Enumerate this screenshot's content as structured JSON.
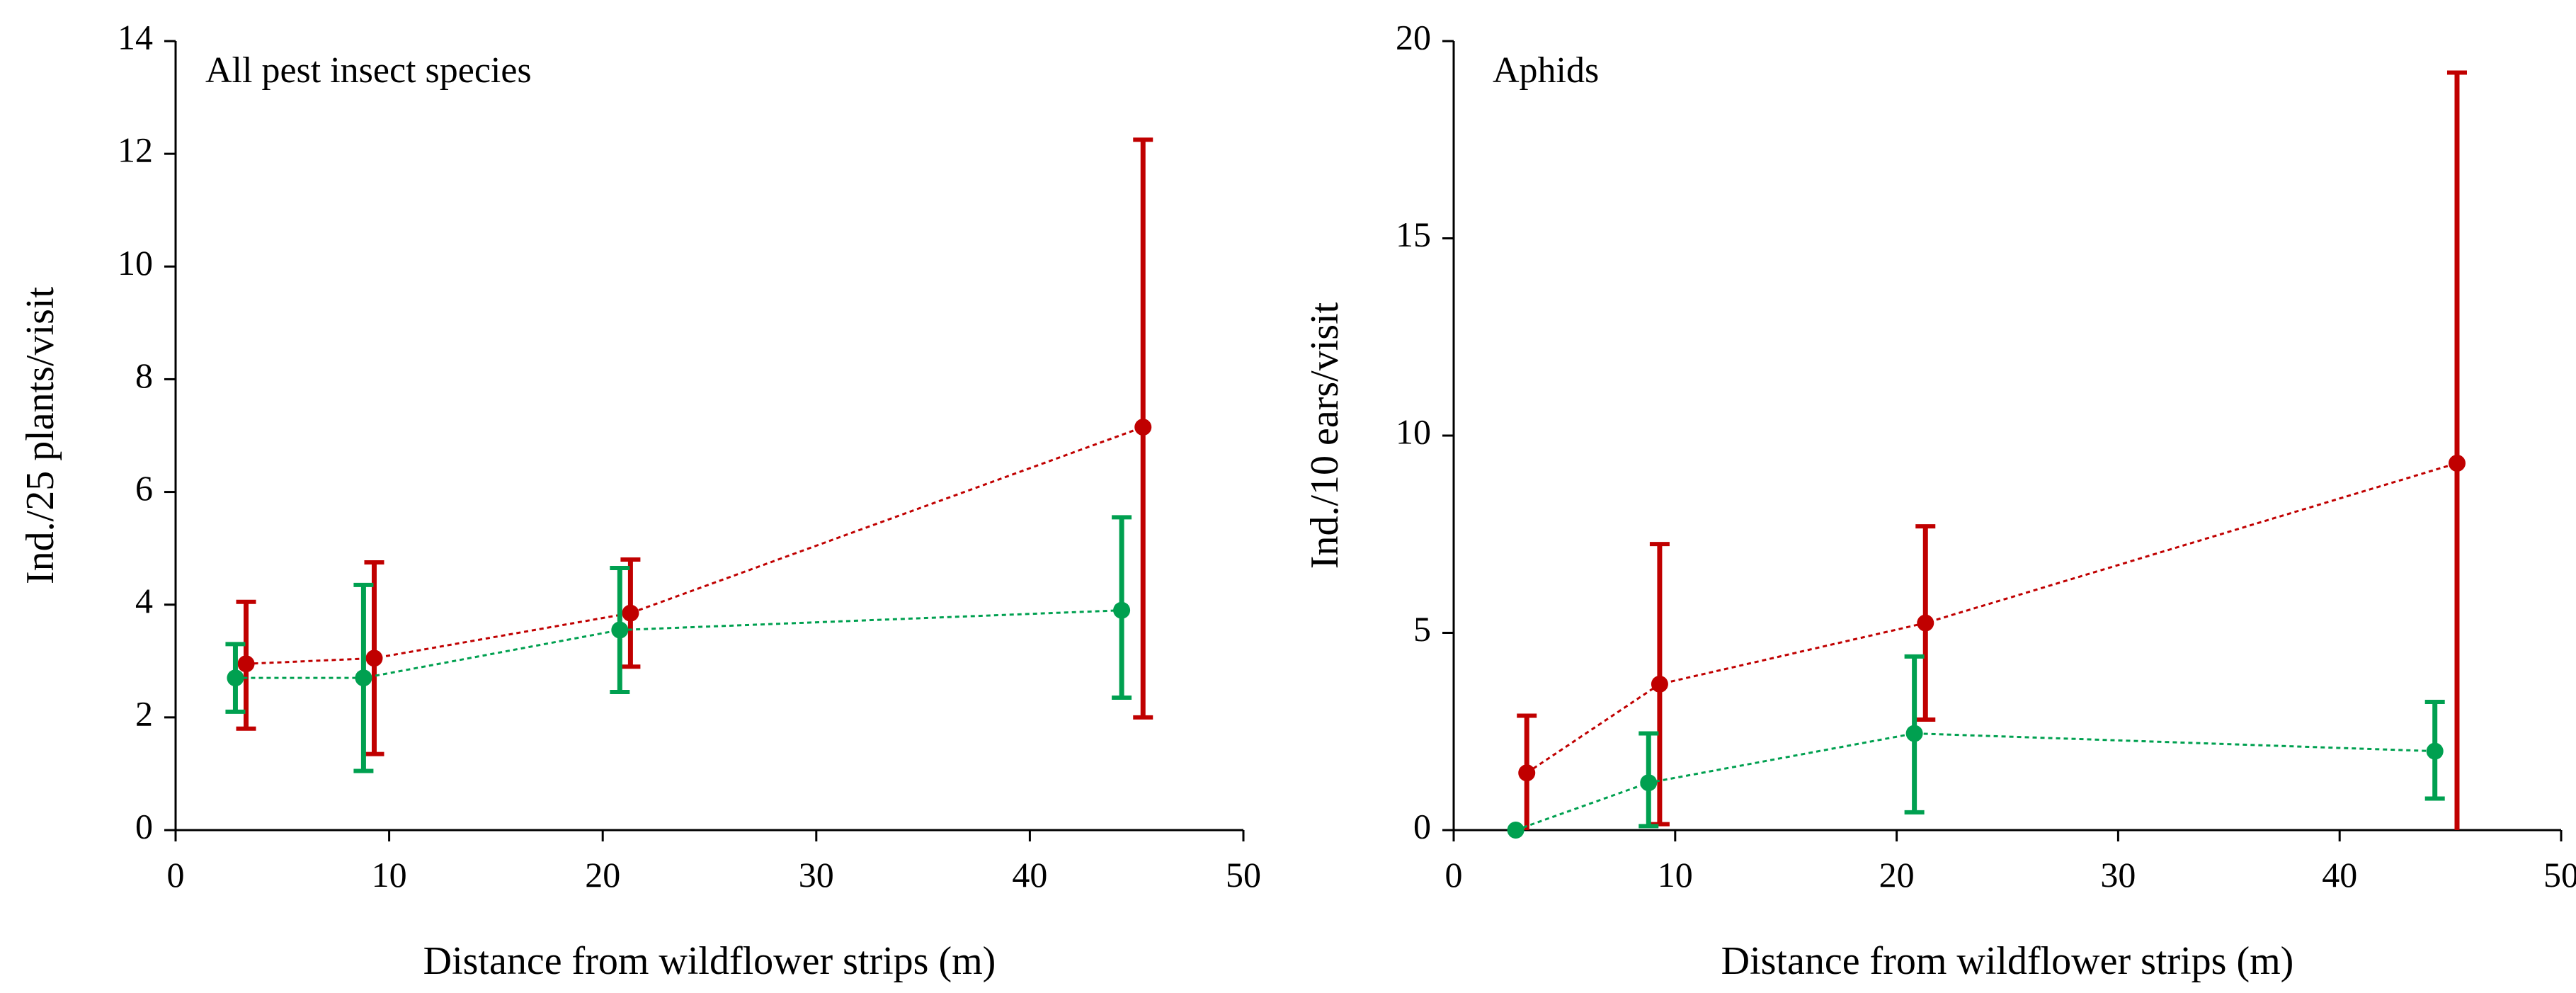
{
  "chart_data": [
    {
      "type": "line",
      "title": "All pest insect species",
      "xlabel": "Distance from wildflower strips (m)",
      "ylabel": "Ind./25 plants/visit",
      "xlim": [
        0,
        50
      ],
      "ylim": [
        0,
        14
      ],
      "xticks": [
        0,
        10,
        20,
        30,
        40,
        50
      ],
      "yticks": [
        0,
        2,
        4,
        6,
        8,
        10,
        12,
        14
      ],
      "grid": false,
      "series": [
        {
          "name": "red",
          "color": "#c00000",
          "x": [
            3.3,
            9.3,
            21.3,
            45.3
          ],
          "y": [
            2.95,
            3.05,
            3.85,
            7.15
          ],
          "err_low": [
            1.8,
            1.35,
            2.9,
            2.0
          ],
          "err_high": [
            4.05,
            4.75,
            4.8,
            12.25
          ]
        },
        {
          "name": "green",
          "color": "#00a050",
          "x": [
            2.8,
            8.8,
            20.8,
            44.3
          ],
          "y": [
            2.7,
            2.7,
            3.55,
            3.9
          ],
          "err_low": [
            2.1,
            1.05,
            2.45,
            2.35
          ],
          "err_high": [
            3.3,
            4.35,
            4.65,
            5.55
          ]
        }
      ]
    },
    {
      "type": "line",
      "title": "Aphids",
      "xlabel": "Distance from wildflower strips (m)",
      "ylabel": "Ind./10 ears/visit",
      "xlim": [
        0,
        50
      ],
      "ylim": [
        0,
        20
      ],
      "xticks": [
        0,
        10,
        20,
        30,
        40,
        50
      ],
      "yticks": [
        0,
        5,
        10,
        15,
        20
      ],
      "grid": false,
      "series": [
        {
          "name": "red",
          "color": "#c00000",
          "x": [
            3.3,
            9.3,
            21.3,
            45.3
          ],
          "y": [
            1.45,
            3.7,
            5.25,
            9.3
          ],
          "err_low": [
            0.0,
            0.15,
            2.8,
            0.0
          ],
          "err_high": [
            2.9,
            7.25,
            7.7,
            19.2
          ]
        },
        {
          "name": "green",
          "color": "#00a050",
          "x": [
            2.8,
            8.8,
            20.8,
            44.3
          ],
          "y": [
            0.0,
            1.2,
            2.45,
            2.0
          ],
          "err_low": [
            0.0,
            0.1,
            0.45,
            0.8
          ],
          "err_high": [
            0.0,
            2.45,
            4.4,
            3.25
          ]
        }
      ]
    }
  ]
}
